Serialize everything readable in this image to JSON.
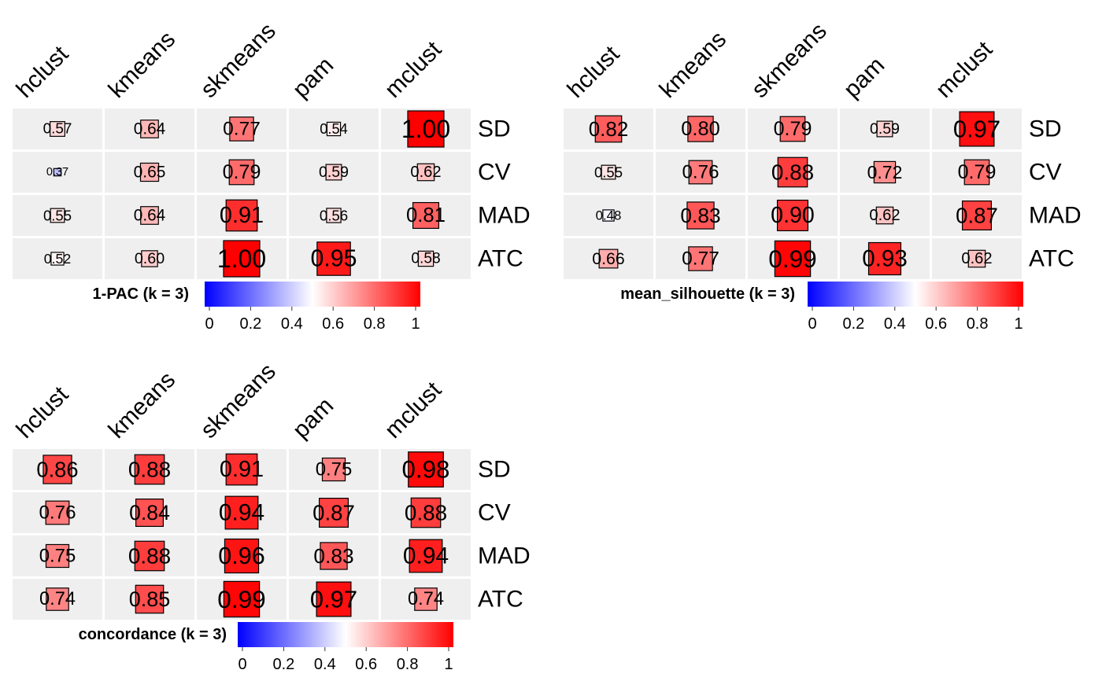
{
  "chart_data": [
    {
      "type": "heatmap",
      "columns": [
        "hclust",
        "kmeans",
        "skmeans",
        "pam",
        "mclust"
      ],
      "rows": [
        "SD",
        "CV",
        "MAD",
        "ATC"
      ],
      "values": [
        [
          0.57,
          0.64,
          0.77,
          0.54,
          1.0
        ],
        [
          0.37,
          0.65,
          0.79,
          0.59,
          0.62
        ],
        [
          0.55,
          0.64,
          0.91,
          0.56,
          0.81
        ],
        [
          0.52,
          0.6,
          1.0,
          0.95,
          0.58
        ]
      ],
      "labels": [
        [
          "0.57",
          "0.64",
          "0.77",
          "0.54",
          "1.00"
        ],
        [
          "0.37",
          "0.65",
          "0.79",
          "0.59",
          "0.62"
        ],
        [
          "0.55",
          "0.64",
          "0.91",
          "0.56",
          "0.81"
        ],
        [
          "0.52",
          "0.60",
          "1.00",
          "0.95",
          "0.58"
        ]
      ],
      "legend": {
        "title": "1-PAC (k = 3)",
        "ticks": [
          "0",
          "0.2",
          "0.4",
          "0.6",
          "0.8",
          "1"
        ],
        "range": [
          0,
          1
        ]
      }
    },
    {
      "type": "heatmap",
      "columns": [
        "hclust",
        "kmeans",
        "skmeans",
        "pam",
        "mclust"
      ],
      "rows": [
        "SD",
        "CV",
        "MAD",
        "ATC"
      ],
      "values": [
        [
          0.82,
          0.8,
          0.79,
          0.59,
          0.97
        ],
        [
          0.55,
          0.76,
          0.88,
          0.72,
          0.79
        ],
        [
          0.48,
          0.83,
          0.9,
          0.62,
          0.87
        ],
        [
          0.66,
          0.77,
          0.99,
          0.93,
          0.62
        ]
      ],
      "labels": [
        [
          "0.82",
          "0.80",
          "0.79",
          "0.59",
          "0.97"
        ],
        [
          "0.55",
          "0.76",
          "0.88",
          "0.72",
          "0.79"
        ],
        [
          "0.48",
          "0.83",
          "0.90",
          "0.62",
          "0.87"
        ],
        [
          "0.66",
          "0.77",
          "0.99",
          "0.93",
          "0.62"
        ]
      ],
      "legend": {
        "title": "mean_silhouette (k = 3)",
        "ticks": [
          "0",
          "0.2",
          "0.4",
          "0.6",
          "0.8",
          "1"
        ],
        "range": [
          0,
          1
        ]
      }
    },
    {
      "type": "heatmap",
      "columns": [
        "hclust",
        "kmeans",
        "skmeans",
        "pam",
        "mclust"
      ],
      "rows": [
        "SD",
        "CV",
        "MAD",
        "ATC"
      ],
      "values": [
        [
          0.86,
          0.88,
          0.91,
          0.75,
          0.98
        ],
        [
          0.76,
          0.84,
          0.94,
          0.87,
          0.88
        ],
        [
          0.75,
          0.88,
          0.96,
          0.83,
          0.94
        ],
        [
          0.74,
          0.85,
          0.99,
          0.97,
          0.74
        ]
      ],
      "labels": [
        [
          "0.86",
          "0.88",
          "0.91",
          "0.75",
          "0.98"
        ],
        [
          "0.76",
          "0.84",
          "0.94",
          "0.87",
          "0.88"
        ],
        [
          "0.75",
          "0.88",
          "0.96",
          "0.83",
          "0.94"
        ],
        [
          "0.74",
          "0.85",
          "0.99",
          "0.97",
          "0.74"
        ]
      ],
      "legend": {
        "title": "concordance (k = 3)",
        "ticks": [
          "0",
          "0.2",
          "0.4",
          "0.6",
          "0.8",
          "1"
        ],
        "range": [
          0,
          1
        ]
      }
    }
  ],
  "colors": {
    "cell_background": "#efefef",
    "scale_low": "#0000ff",
    "scale_mid": "#ffffff",
    "scale_high": "#ff0000",
    "box_border": "#000000"
  }
}
